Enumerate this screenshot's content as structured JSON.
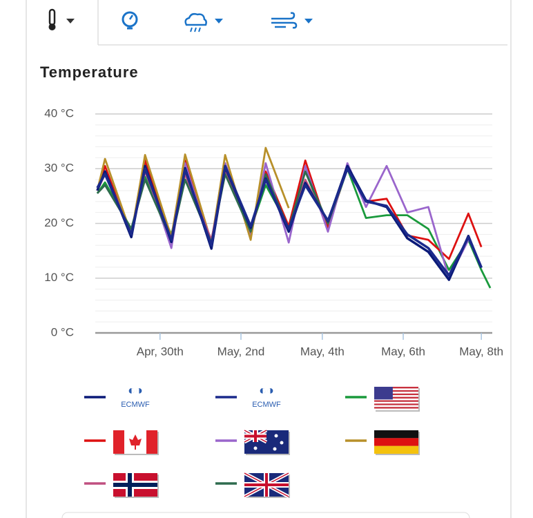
{
  "chart_data": {
    "type": "line",
    "title": "Temperature",
    "x": [
      0.05,
      0.24,
      0.89,
      1.23,
      1.88,
      2.22,
      2.87,
      3.21,
      3.84,
      4.21,
      4.78,
      5.19,
      5.75,
      6.23,
      6.69,
      7.2,
      7.71,
      8.23,
      8.74,
      9.22,
      9.54,
      9.76
    ],
    "xlim": [
      0,
      9.81
    ],
    "xticks": [
      {
        "value": 1.6,
        "label": "Apr, 30th"
      },
      {
        "value": 3.6,
        "label": "May, 2nd"
      },
      {
        "value": 5.61,
        "label": "May, 4th"
      },
      {
        "value": 7.61,
        "label": "May, 6th"
      },
      {
        "value": 9.54,
        "label": "May, 8th"
      }
    ],
    "ylim": [
      0,
      40
    ],
    "yticks": [
      {
        "value": 0,
        "label": "0 °C"
      },
      {
        "value": 10,
        "label": "10 °C"
      },
      {
        "value": 20,
        "label": "20 °C"
      },
      {
        "value": 30,
        "label": "30 °C"
      },
      {
        "value": 40,
        "label": "40 °C"
      }
    ],
    "grid": true,
    "series": [
      {
        "name": "ECMWF",
        "color": "#0b1a78",
        "values": [
          26,
          29.5,
          17.5,
          30.5,
          16.6,
          30.1,
          15.4,
          30.3,
          19.2,
          28.2,
          18.5,
          27.4,
          20.4,
          30.5,
          24.2,
          23,
          17.3,
          14.8,
          9.7,
          17.7,
          11.9,
          null
        ]
      },
      {
        "name": "ECMWF",
        "color": "#1b2a8c",
        "values": [
          26.5,
          29,
          18,
          30,
          17,
          29.8,
          16,
          30.5,
          19.5,
          28,
          19,
          27,
          20.5,
          30,
          24,
          23.2,
          18,
          15.5,
          10.5,
          17.5,
          12,
          null
        ]
      },
      {
        "color": "#1a9a3c",
        "values": [
          25.5,
          27.5,
          19,
          28.5,
          18,
          28,
          17,
          29,
          19,
          27,
          19.5,
          29.5,
          19.5,
          30,
          21,
          21.5,
          21.5,
          19,
          11.5,
          17,
          11.5,
          8.2
        ]
      },
      {
        "color": "#dd1111",
        "values": [
          26,
          30.5,
          17.5,
          31.5,
          17.2,
          31.5,
          16,
          31,
          18,
          29.5,
          19.5,
          31.5,
          19,
          30.5,
          24,
          24.5,
          17.8,
          17,
          13.5,
          21.8,
          15.7,
          null
        ]
      },
      {
        "color": "#9a66cc",
        "values": [
          26,
          29.5,
          18,
          30,
          15.5,
          31,
          15.5,
          31,
          17.5,
          31,
          16.5,
          30.5,
          18.5,
          31,
          23,
          30.5,
          22,
          23,
          10,
          17,
          null,
          null
        ]
      },
      {
        "color": "#b8902a",
        "values": [
          26,
          31.8,
          18,
          32.5,
          17.5,
          32.6,
          16.5,
          32.5,
          17,
          33.8,
          22.8,
          null,
          null,
          null,
          null,
          null,
          null,
          null,
          null,
          null,
          null,
          null
        ]
      },
      {
        "color": "#c05080",
        "values": [
          26,
          29,
          18,
          29.5,
          17,
          29,
          17,
          29.5,
          19,
          28.5,
          19,
          28,
          20,
          30,
          null,
          null,
          null,
          null,
          null,
          null,
          null,
          null
        ]
      },
      {
        "color": "#2e6b4e",
        "values": [
          25.5,
          27,
          19,
          28,
          17,
          28,
          16.5,
          29,
          18.5,
          29,
          19,
          29.5,
          20,
          30,
          null,
          null,
          null,
          null,
          null,
          null,
          null,
          null
        ]
      }
    ]
  }
}
